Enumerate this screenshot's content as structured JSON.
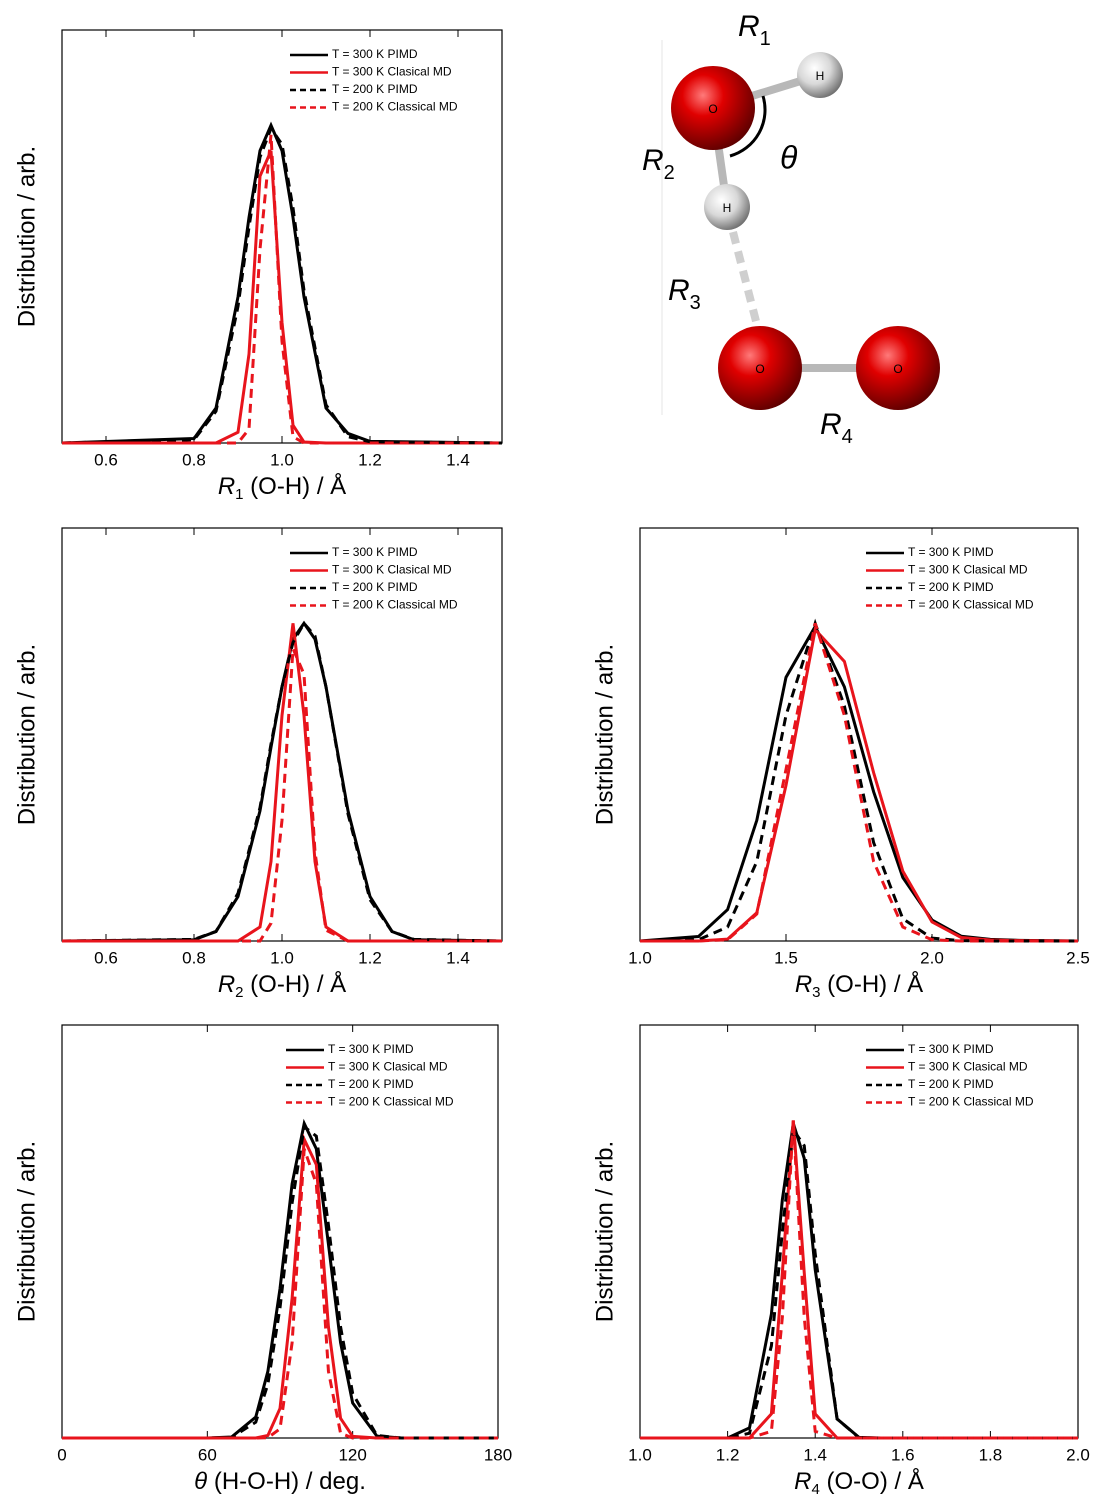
{
  "chart_data": [
    {
      "type": "line",
      "ylabel": "Distribution / arb.",
      "xlabel": {
        "symbol": "R",
        "subscript": "1",
        "text": " (O-H) / Å"
      },
      "xlim": [
        0.5,
        1.5
      ],
      "ylim": [
        0,
        1.3
      ],
      "xticks": [
        0.6,
        0.8,
        {
          "value": 1,
          "label": "1.0"
        },
        1.2,
        1.4
      ],
      "x": [
        0.5,
        0.8,
        0.85,
        0.9,
        0.925,
        0.95,
        0.975,
        1.0,
        1.025,
        1.05,
        1.1,
        1.15,
        1.2,
        1.5
      ],
      "series": [
        {
          "name": "T = 300 K PIMD",
          "color": "#000000",
          "dashed": false,
          "values": [
            0,
            0.014,
            0.11,
            0.46,
            0.71,
            0.92,
            1,
            0.92,
            0.71,
            0.46,
            0.11,
            0.03,
            0.005,
            0
          ]
        },
        {
          "name": "T = 300 K Clasical MD",
          "color": "#e8141c",
          "dashed": false,
          "values": [
            0,
            0,
            0,
            0.034,
            0.28,
            0.84,
            0.92,
            0.38,
            0.056,
            0.003,
            0,
            0,
            0,
            0
          ]
        },
        {
          "name": "T = 200 K PIMD",
          "color": "#000000",
          "dashed": true,
          "values": [
            0,
            0.01,
            0.1,
            0.43,
            0.68,
            0.9,
            0.99,
            0.94,
            0.74,
            0.48,
            0.12,
            0.02,
            0.004,
            0
          ]
        },
        {
          "name": "T = 200 K Classical MD",
          "color": "#e8141c",
          "dashed": true,
          "values": [
            0,
            0,
            0,
            0,
            0.044,
            0.61,
            0.97,
            0.32,
            0.02,
            0,
            0,
            0,
            0,
            0
          ]
        }
      ]
    },
    {
      "type": "line",
      "ylabel": "Distribution / arb.",
      "xlabel": {
        "symbol": "R",
        "subscript": "2",
        "text": " (O-H) / Å"
      },
      "xlim": [
        0.5,
        1.5
      ],
      "ylim": [
        0,
        1.3
      ],
      "xticks": [
        0.6,
        0.8,
        {
          "value": 1,
          "label": "1.0"
        },
        1.2,
        1.4
      ],
      "x": [
        0.5,
        0.8,
        0.85,
        0.9,
        0.95,
        0.975,
        1.0,
        1.025,
        1.05,
        1.075,
        1.1,
        1.15,
        1.2,
        1.25,
        1.3,
        1.5
      ],
      "series": [
        {
          "name": "T = 300 K PIMD",
          "color": "#000000",
          "dashed": false,
          "values": [
            0,
            0.004,
            0.03,
            0.14,
            0.41,
            0.61,
            0.8,
            0.95,
            1,
            0.95,
            0.8,
            0.41,
            0.14,
            0.03,
            0.004,
            0
          ]
        },
        {
          "name": "T = 300 K Clasical MD",
          "color": "#e8141c",
          "dashed": false,
          "values": [
            0,
            0,
            0,
            0,
            0.044,
            0.25,
            0.71,
            1,
            0.71,
            0.25,
            0.044,
            0,
            0,
            0,
            0,
            0
          ]
        },
        {
          "name": "T = 200 K PIMD",
          "color": "#000000",
          "dashed": true,
          "values": [
            0,
            0.005,
            0.03,
            0.15,
            0.42,
            0.62,
            0.8,
            0.94,
            1,
            0.96,
            0.8,
            0.4,
            0.13,
            0.03,
            0.005,
            0
          ]
        },
        {
          "name": "T = 200 K Classical MD",
          "color": "#e8141c",
          "dashed": true,
          "values": [
            0,
            0,
            0,
            0,
            0,
            0.056,
            0.38,
            0.92,
            0.84,
            0.28,
            0.034,
            0,
            0,
            0,
            0,
            0
          ]
        }
      ]
    },
    {
      "type": "line",
      "ylabel": "Distribution / arb.",
      "xlabel": {
        "symbol": "R",
        "subscript": "3",
        "text": " (O-H) / Å"
      },
      "xlim": [
        1,
        2.5
      ],
      "ylim": [
        0,
        1.3
      ],
      "xticks": [
        {
          "value": 1,
          "label": "1.0"
        },
        1.5,
        {
          "value": 2,
          "label": "2.0"
        },
        2.5
      ],
      "x": [
        1.0,
        1.2,
        1.3,
        1.4,
        1.5,
        1.6,
        1.7,
        1.8,
        1.9,
        2.0,
        2.1,
        2.2,
        2.3,
        2.5
      ],
      "series": [
        {
          "name": "T = 300 K PIMD",
          "color": "#000000",
          "dashed": false,
          "values": [
            0,
            0.014,
            0.099,
            0.38,
            0.83,
            0.99,
            0.8,
            0.47,
            0.2,
            0.066,
            0.015,
            0.005,
            0.002,
            0
          ]
        },
        {
          "name": "T = 300 K Clasical MD",
          "color": "#e8141c",
          "dashed": false,
          "values": [
            0,
            0,
            0.006,
            0.089,
            0.49,
            0.98,
            0.88,
            0.53,
            0.22,
            0.06,
            0.011,
            0.003,
            0.001,
            0
          ]
        },
        {
          "name": "T = 200 K PIMD",
          "color": "#000000",
          "dashed": true,
          "values": [
            0,
            0.004,
            0.044,
            0.25,
            0.71,
            1,
            0.74,
            0.31,
            0.07,
            0.009,
            0.001,
            0,
            0,
            0
          ]
        },
        {
          "name": "T = 200 K Classical MD",
          "color": "#e8141c",
          "dashed": true,
          "values": [
            0,
            0,
            0.004,
            0.085,
            0.54,
            1,
            0.71,
            0.25,
            0.044,
            0.004,
            0,
            0,
            0,
            0
          ]
        }
      ]
    },
    {
      "type": "line",
      "ylabel": "Distribution / arb.",
      "xlabel": {
        "symbol": "θ",
        "subscript": "",
        "text": " (H-O-H) / deg."
      },
      "xlim": [
        0,
        180
      ],
      "ylim": [
        0,
        1.3
      ],
      "xticks": [
        0,
        60,
        120,
        180
      ],
      "x": [
        0,
        60,
        70,
        80,
        85,
        90,
        95,
        100,
        105,
        110,
        115,
        120,
        130,
        140,
        180
      ],
      "series": [
        {
          "name": "T = 300 K PIMD",
          "color": "#000000",
          "dashed": false,
          "values": [
            0,
            0,
            0.003,
            0.066,
            0.21,
            0.47,
            0.8,
            0.99,
            0.91,
            0.61,
            0.3,
            0.11,
            0.006,
            0,
            0
          ]
        },
        {
          "name": "T = 300 K Clasical MD",
          "color": "#e8141c",
          "dashed": false,
          "values": [
            0,
            0,
            0,
            0,
            0.008,
            0.093,
            0.44,
            0.94,
            0.86,
            0.35,
            0.062,
            0.005,
            0,
            0,
            0
          ]
        },
        {
          "name": "T = 200 K PIMD",
          "color": "#000000",
          "dashed": true,
          "values": [
            0,
            0,
            0.002,
            0.05,
            0.17,
            0.41,
            0.74,
            0.98,
            0.95,
            0.67,
            0.35,
            0.14,
            0.008,
            0,
            0
          ]
        },
        {
          "name": "T = 200 K Classical MD",
          "color": "#e8141c",
          "dashed": true,
          "values": [
            0,
            0,
            0,
            0,
            0.001,
            0.029,
            0.3,
            0.91,
            0.8,
            0.21,
            0.015,
            0,
            0,
            0,
            0
          ]
        }
      ]
    },
    {
      "type": "line",
      "ylabel": "Distribution / arb.",
      "xlabel": {
        "symbol": "R",
        "subscript": "4",
        "text": " (O-O) / Å"
      },
      "xlim": [
        1,
        2
      ],
      "ylim": [
        0,
        1.3
      ],
      "xticks": [
        {
          "value": 1,
          "label": "1.0"
        },
        1.2,
        1.4,
        1.6,
        1.8,
        {
          "value": 2,
          "label": "2.0"
        }
      ],
      "x": [
        1.0,
        1.2,
        1.25,
        1.3,
        1.325,
        1.35,
        1.375,
        1.4,
        1.45,
        1.5,
        1.55,
        2.0
      ],
      "series": [
        {
          "name": "T = 300 K PIMD",
          "color": "#000000",
          "dashed": false,
          "values": [
            0,
            0,
            0.032,
            0.39,
            0.75,
            0.99,
            0.88,
            0.53,
            0.06,
            0.002,
            0,
            0
          ]
        },
        {
          "name": "T = 300 K Clasical MD",
          "color": "#e8141c",
          "dashed": false,
          "values": [
            0,
            0,
            0,
            0.076,
            0.52,
            1,
            0.52,
            0.076,
            0,
            0,
            0,
            0
          ]
        },
        {
          "name": "T = 200 K PIMD",
          "color": "#000000",
          "dashed": true,
          "values": [
            0,
            0,
            0.015,
            0.29,
            0.65,
            0.97,
            0.92,
            0.58,
            0.06,
            0.001,
            0,
            0
          ]
        },
        {
          "name": "T = 200 K Classical MD",
          "color": "#e8141c",
          "dashed": true,
          "values": [
            0,
            0,
            0,
            0.021,
            0.38,
            1,
            0.38,
            0.021,
            0,
            0,
            0,
            0
          ]
        }
      ]
    }
  ],
  "diagram": {
    "bond_labels": [
      {
        "symbol": "R",
        "subscript": "1"
      },
      {
        "symbol": "R",
        "subscript": "2"
      },
      {
        "symbol": "R",
        "subscript": "3"
      },
      {
        "symbol": "R",
        "subscript": "4"
      }
    ],
    "angle_label": "θ",
    "atoms": [
      "O",
      "H",
      "H",
      "O",
      "O"
    ]
  }
}
